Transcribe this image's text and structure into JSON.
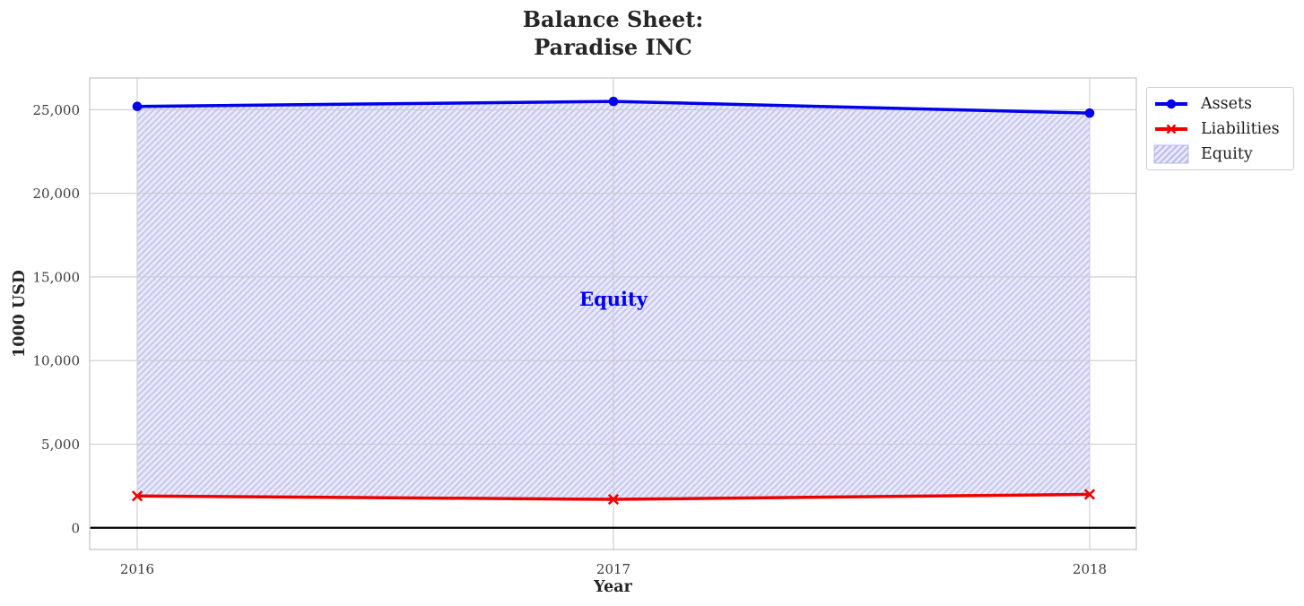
{
  "figure": {
    "title_lines": [
      "Balance Sheet:",
      "Paradise INC"
    ]
  },
  "chart_data": {
    "type": "line",
    "title": "Balance Sheet:\nParadise INC",
    "xlabel": "Year",
    "ylabel": "1000 USD",
    "categories": [
      "2016",
      "2017",
      "2018"
    ],
    "series": [
      {
        "name": "Assets",
        "color": "#0000ee",
        "marker": "circle",
        "line_width": 3.5,
        "values": [
          25200,
          25500,
          24800
        ]
      },
      {
        "name": "Liabilities",
        "color": "#ee0000",
        "marker": "x",
        "line_width": 3.5,
        "values": [
          1900,
          1700,
          2000
        ]
      }
    ],
    "area": {
      "name": "Equity",
      "between": [
        "Liabilities",
        "Assets"
      ],
      "hatch": "//",
      "fill_color": "#e9e9fb",
      "hatch_color": "#c6c6f0"
    },
    "annotation": {
      "text": "Equity",
      "color": "#0000ee",
      "x": "2017",
      "y": 13500
    },
    "yticks": {
      "values": [
        0,
        5000,
        10000,
        15000,
        20000,
        25000
      ],
      "labels": [
        "0",
        "5,000",
        "10,000",
        "15,000",
        "20,000",
        "25,000"
      ]
    },
    "ylim": [
      -1300,
      26900
    ],
    "grid": true,
    "grid_color": "#cccccc",
    "baseline": {
      "y": 0,
      "color": "#000000"
    },
    "tick_color": "#3d3d3d",
    "legend": {
      "position": "outside-upper-right",
      "items": [
        {
          "label": "Assets",
          "swatch": "line-circle",
          "color": "#0000ee"
        },
        {
          "label": "Liabilities",
          "swatch": "line-x",
          "color": "#ee0000"
        },
        {
          "label": "Equity",
          "swatch": "hatch-patch",
          "color": "#c6c6f0"
        }
      ]
    }
  }
}
